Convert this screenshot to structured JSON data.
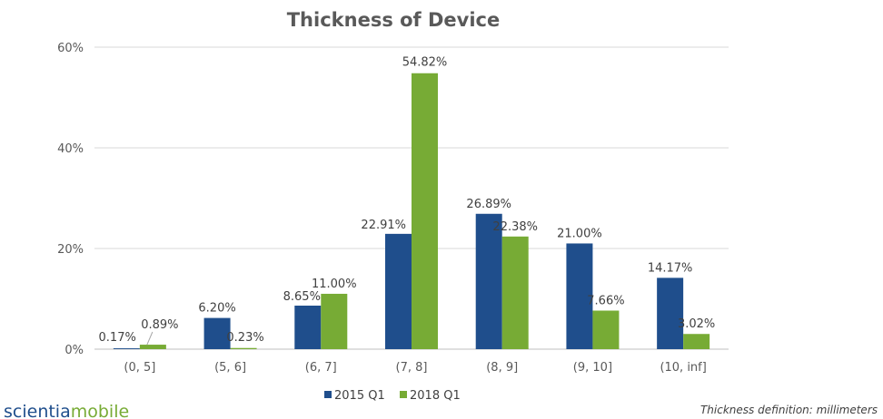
{
  "chart_data": {
    "type": "bar",
    "title": "Thickness of Device",
    "xlabel": "",
    "ylabel": "",
    "categories": [
      "(0, 5]",
      "(5, 6]",
      "(6, 7]",
      "(7, 8]",
      "(8, 9]",
      "(9, 10]",
      "(10, inf]"
    ],
    "series": [
      {
        "name": "2015 Q1",
        "color": "#1f4e8c",
        "values": [
          0.17,
          6.2,
          8.65,
          22.91,
          26.89,
          21.0,
          14.17
        ],
        "labels": [
          "0.17%",
          "6.20%",
          "8.65%",
          "22.91%",
          "26.89%",
          "21.00%",
          "14.17%"
        ]
      },
      {
        "name": "2018 Q1",
        "color": "#77ab35",
        "values": [
          0.89,
          0.23,
          11.0,
          54.82,
          22.38,
          7.66,
          3.02
        ],
        "labels": [
          "0.89%",
          "0.23%",
          "11.00%",
          "54.82%",
          "22.38%",
          "7.66%",
          "3.02%"
        ]
      }
    ],
    "ylim": [
      0,
      60
    ],
    "yticks": [
      0,
      20,
      40,
      60
    ],
    "ytick_labels": [
      "0%",
      "20%",
      "40%",
      "60%"
    ],
    "grid": true,
    "legend_position": "bottom"
  },
  "footnote": "Thickness definition: millimeters",
  "logo": {
    "part1": "scientia",
    "part2": "mobile",
    "color1": "#1f4e8c",
    "color2": "#77ab35"
  }
}
